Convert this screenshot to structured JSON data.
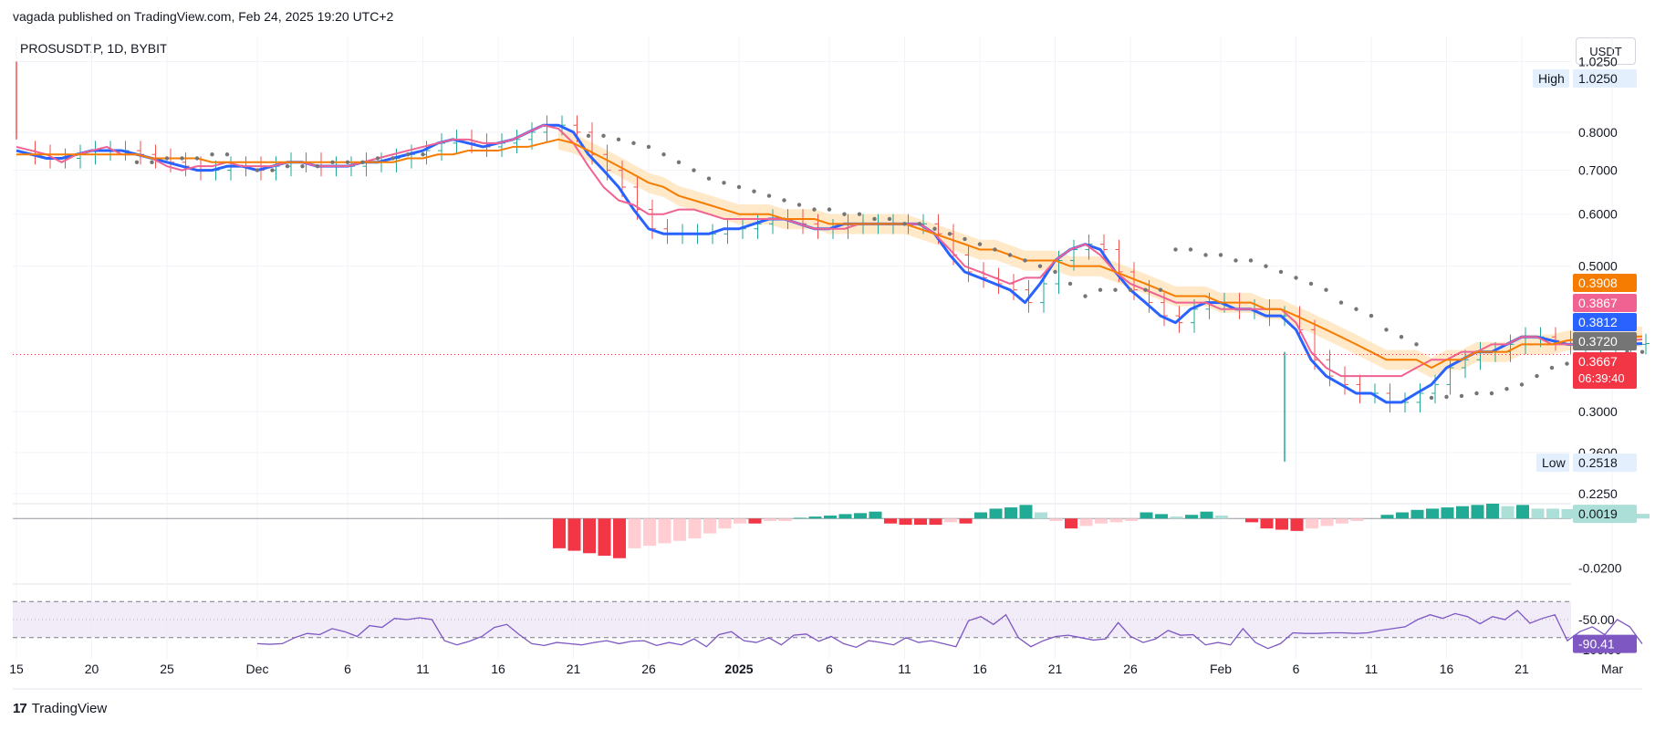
{
  "header": {
    "published_line": "vagada published on TradingView.com, Feb 24, 2025 19:20 UTC+2",
    "symbol_line": "PROSUSDT.P, 1D, BYBIT",
    "currency": "USDT"
  },
  "footer": {
    "brand": "TradingView",
    "logo_mark": "17"
  },
  "colors": {
    "blue_line": "#2962ff",
    "pink_line": "#f06292",
    "orange_line": "#f57c00",
    "band_fill": "#ffe0b2",
    "up_bar": "#26a69a",
    "down_bar": "#ef5350",
    "psar_dots": "#757575",
    "rsi_line": "#7e57c2",
    "rsi_fill": "#ede7f6",
    "grid": "#f0f3fa"
  },
  "chart_data": [
    {
      "type": "line",
      "panel": "price",
      "scale": "log",
      "ylim": [
        0.22,
        1.05
      ],
      "y_ticks": [
        "1.0250",
        "0.8000",
        "0.7000",
        "0.6000",
        "0.5000",
        "0.3000",
        "0.2600",
        "0.2250"
      ],
      "x_ticks": [
        "15",
        "20",
        "25",
        "Dec",
        "6",
        "11",
        "16",
        "21",
        "26",
        "2025",
        "6",
        "11",
        "16",
        "21",
        "26",
        "Feb",
        "6",
        "11",
        "16",
        "21",
        "Mar"
      ],
      "high_label": "High",
      "high_value": "1.0250",
      "low_label": "Low",
      "low_value": "0.2518",
      "price_labels": [
        {
          "value": "0.3908",
          "color": "#f57c00"
        },
        {
          "value": "0.3867",
          "color": "#f06292"
        },
        {
          "value": "0.3812",
          "color": "#2962ff"
        },
        {
          "value": "0.3720",
          "color": "#757575"
        }
      ],
      "last_price": "0.3667",
      "countdown": "06:39:40",
      "series": [
        {
          "color": "#2962ff",
          "values": [
            0.75,
            0.74,
            0.73,
            0.73,
            0.74,
            0.75,
            0.75,
            0.75,
            0.74,
            0.73,
            0.72,
            0.71,
            0.7,
            0.7,
            0.71,
            0.71,
            0.7,
            0.71,
            0.72,
            0.72,
            0.71,
            0.71,
            0.71,
            0.72,
            0.72,
            0.73,
            0.74,
            0.75,
            0.77,
            0.78,
            0.77,
            0.76,
            0.77,
            0.78,
            0.8,
            0.82,
            0.82,
            0.8,
            0.74,
            0.7,
            0.66,
            0.61,
            0.57,
            0.56,
            0.56,
            0.56,
            0.56,
            0.57,
            0.57,
            0.58,
            0.59,
            0.59,
            0.58,
            0.57,
            0.57,
            0.58,
            0.58,
            0.58,
            0.58,
            0.58,
            0.58,
            0.56,
            0.52,
            0.49,
            0.48,
            0.47,
            0.46,
            0.44,
            0.47,
            0.51,
            0.53,
            0.54,
            0.53,
            0.49,
            0.46,
            0.44,
            0.42,
            0.41,
            0.43,
            0.44,
            0.44,
            0.43,
            0.43,
            0.42,
            0.42,
            0.4,
            0.36,
            0.34,
            0.33,
            0.32,
            0.32,
            0.31,
            0.31,
            0.32,
            0.33,
            0.35,
            0.36,
            0.37,
            0.37,
            0.38,
            0.39,
            0.39,
            0.385,
            0.38,
            0.38,
            0.38,
            0.38,
            0.38,
            0.381
          ]
        },
        {
          "color": "#f06292",
          "values": [
            0.76,
            0.75,
            0.74,
            0.72,
            0.74,
            0.75,
            0.76,
            0.74,
            0.74,
            0.73,
            0.71,
            0.7,
            0.71,
            0.71,
            0.72,
            0.71,
            0.71,
            0.71,
            0.72,
            0.72,
            0.71,
            0.71,
            0.71,
            0.72,
            0.73,
            0.74,
            0.75,
            0.76,
            0.77,
            0.78,
            0.78,
            0.77,
            0.77,
            0.78,
            0.8,
            0.82,
            0.81,
            0.77,
            0.71,
            0.66,
            0.63,
            0.62,
            0.6,
            0.6,
            0.61,
            0.61,
            0.6,
            0.59,
            0.59,
            0.59,
            0.59,
            0.59,
            0.58,
            0.57,
            0.57,
            0.57,
            0.58,
            0.58,
            0.58,
            0.58,
            0.58,
            0.56,
            0.53,
            0.5,
            0.49,
            0.48,
            0.47,
            0.48,
            0.48,
            0.51,
            0.53,
            0.54,
            0.52,
            0.49,
            0.47,
            0.46,
            0.45,
            0.44,
            0.44,
            0.44,
            0.43,
            0.43,
            0.43,
            0.43,
            0.43,
            0.41,
            0.37,
            0.35,
            0.34,
            0.34,
            0.34,
            0.34,
            0.34,
            0.35,
            0.36,
            0.36,
            0.37,
            0.37,
            0.38,
            0.38,
            0.39,
            0.39,
            0.38,
            0.38,
            0.38,
            0.38,
            0.38,
            0.385,
            0.3867
          ]
        },
        {
          "color": "#f57c00",
          "values": [
            0.74,
            0.74,
            0.74,
            0.74,
            0.74,
            0.74,
            0.74,
            0.74,
            0.74,
            0.73,
            0.73,
            0.73,
            0.73,
            0.72,
            0.72,
            0.72,
            0.72,
            0.72,
            0.72,
            0.72,
            0.72,
            0.72,
            0.72,
            0.72,
            0.72,
            0.72,
            0.73,
            0.73,
            0.74,
            0.74,
            0.75,
            0.75,
            0.75,
            0.76,
            0.76,
            0.77,
            0.78,
            0.77,
            0.75,
            0.73,
            0.71,
            0.69,
            0.67,
            0.66,
            0.64,
            0.63,
            0.62,
            0.61,
            0.6,
            0.6,
            0.6,
            0.59,
            0.59,
            0.59,
            0.58,
            0.58,
            0.58,
            0.58,
            0.58,
            0.58,
            0.57,
            0.56,
            0.55,
            0.54,
            0.53,
            0.53,
            0.52,
            0.51,
            0.51,
            0.51,
            0.5,
            0.5,
            0.5,
            0.49,
            0.48,
            0.47,
            0.46,
            0.45,
            0.45,
            0.45,
            0.44,
            0.44,
            0.44,
            0.43,
            0.43,
            0.42,
            0.41,
            0.4,
            0.39,
            0.38,
            0.37,
            0.36,
            0.36,
            0.36,
            0.35,
            0.36,
            0.36,
            0.37,
            0.37,
            0.37,
            0.38,
            0.38,
            0.38,
            0.385,
            0.388,
            0.39,
            0.39,
            0.39,
            0.3908
          ]
        }
      ],
      "psar": [
        {
          "start": 8,
          "end": 14,
          "values": [
            0.72,
            0.72,
            0.73,
            0.73,
            0.73,
            0.74,
            0.74
          ]
        },
        {
          "start": 16,
          "end": 27,
          "values": [
            0.7,
            0.7,
            0.71,
            0.71,
            0.71,
            0.72,
            0.72,
            0.72,
            0.73,
            0.73,
            0.74,
            0.74
          ]
        },
        {
          "start": 38,
          "end": 62,
          "values": [
            0.79,
            0.79,
            0.78,
            0.77,
            0.76,
            0.74,
            0.72,
            0.7,
            0.68,
            0.67,
            0.66,
            0.65,
            0.64,
            0.63,
            0.62,
            0.61,
            0.61,
            0.6,
            0.6,
            0.59,
            0.59,
            0.58,
            0.58,
            0.57,
            0.56
          ]
        },
        {
          "start": 63,
          "end": 71,
          "values": [
            0.55,
            0.54,
            0.53,
            0.52,
            0.51,
            0.5,
            0.49,
            0.47,
            0.45
          ]
        },
        {
          "start": 72,
          "end": 76,
          "values": [
            0.46,
            0.46,
            0.46,
            0.46,
            0.46
          ]
        },
        {
          "start": 77,
          "end": 93,
          "values": [
            0.53,
            0.53,
            0.52,
            0.52,
            0.51,
            0.51,
            0.5,
            0.49,
            0.48,
            0.47,
            0.46,
            0.44,
            0.43,
            0.42,
            0.4,
            0.39,
            0.38
          ]
        },
        {
          "start": 94,
          "end": 101,
          "values": [
            0.315,
            0.316,
            0.317,
            0.32,
            0.32,
            0.325,
            0.33,
            0.34
          ]
        },
        {
          "start": 102,
          "end": 108,
          "values": [
            0.35,
            0.355,
            0.36,
            0.36,
            0.36,
            0.37,
            0.37
          ]
        }
      ]
    },
    {
      "type": "bar",
      "panel": "oscillator",
      "ylim": [
        -0.022,
        0.006
      ],
      "y_ticks": [
        "-0.0200"
      ],
      "current_value": "0.0019",
      "bars": [
        {
          "i": 36,
          "v": -0.012,
          "c": "dark_red"
        },
        {
          "i": 37,
          "v": -0.013,
          "c": "dark_red"
        },
        {
          "i": 38,
          "v": -0.014,
          "c": "dark_red"
        },
        {
          "i": 39,
          "v": -0.015,
          "c": "dark_red"
        },
        {
          "i": 40,
          "v": -0.016,
          "c": "dark_red"
        },
        {
          "i": 41,
          "v": -0.012,
          "c": "light_red"
        },
        {
          "i": 42,
          "v": -0.011,
          "c": "light_red"
        },
        {
          "i": 43,
          "v": -0.01,
          "c": "light_red"
        },
        {
          "i": 44,
          "v": -0.009,
          "c": "light_red"
        },
        {
          "i": 45,
          "v": -0.008,
          "c": "light_red"
        },
        {
          "i": 46,
          "v": -0.006,
          "c": "light_red"
        },
        {
          "i": 47,
          "v": -0.004,
          "c": "light_red"
        },
        {
          "i": 48,
          "v": -0.002,
          "c": "light_red"
        },
        {
          "i": 49,
          "v": -0.002,
          "c": "dark_red"
        },
        {
          "i": 50,
          "v": -0.001,
          "c": "light_red"
        },
        {
          "i": 51,
          "v": -0.001,
          "c": "light_red"
        },
        {
          "i": 52,
          "v": 0.0003,
          "c": "dark_green"
        },
        {
          "i": 53,
          "v": 0.0008,
          "c": "dark_green"
        },
        {
          "i": 54,
          "v": 0.0012,
          "c": "dark_green"
        },
        {
          "i": 55,
          "v": 0.0018,
          "c": "dark_green"
        },
        {
          "i": 56,
          "v": 0.0022,
          "c": "dark_green"
        },
        {
          "i": 57,
          "v": 0.0028,
          "c": "dark_green"
        },
        {
          "i": 58,
          "v": -0.002,
          "c": "dark_red"
        },
        {
          "i": 59,
          "v": -0.0025,
          "c": "dark_red"
        },
        {
          "i": 60,
          "v": -0.0025,
          "c": "dark_red"
        },
        {
          "i": 61,
          "v": -0.0025,
          "c": "dark_red"
        },
        {
          "i": 62,
          "v": -0.0015,
          "c": "light_red"
        },
        {
          "i": 63,
          "v": -0.002,
          "c": "dark_red"
        },
        {
          "i": 64,
          "v": 0.0025,
          "c": "dark_green"
        },
        {
          "i": 65,
          "v": 0.004,
          "c": "dark_green"
        },
        {
          "i": 66,
          "v": 0.0045,
          "c": "dark_green"
        },
        {
          "i": 67,
          "v": 0.0055,
          "c": "dark_green"
        },
        {
          "i": 68,
          "v": 0.0025,
          "c": "light_green"
        },
        {
          "i": 69,
          "v": -0.001,
          "c": "light_red"
        },
        {
          "i": 70,
          "v": -0.004,
          "c": "dark_red"
        },
        {
          "i": 71,
          "v": -0.003,
          "c": "light_red"
        },
        {
          "i": 72,
          "v": -0.002,
          "c": "light_red"
        },
        {
          "i": 73,
          "v": -0.0015,
          "c": "light_red"
        },
        {
          "i": 74,
          "v": -0.001,
          "c": "light_red"
        },
        {
          "i": 75,
          "v": 0.0025,
          "c": "dark_green"
        },
        {
          "i": 76,
          "v": 0.0018,
          "c": "dark_green"
        },
        {
          "i": 77,
          "v": 0.0008,
          "c": "light_green"
        },
        {
          "i": 78,
          "v": 0.0015,
          "c": "dark_green"
        },
        {
          "i": 79,
          "v": 0.0028,
          "c": "dark_green"
        },
        {
          "i": 80,
          "v": 0.0012,
          "c": "light_green"
        },
        {
          "i": 82,
          "v": -0.0015,
          "c": "dark_red"
        },
        {
          "i": 83,
          "v": -0.004,
          "c": "dark_red"
        },
        {
          "i": 84,
          "v": -0.0045,
          "c": "dark_red"
        },
        {
          "i": 85,
          "v": -0.005,
          "c": "dark_red"
        },
        {
          "i": 86,
          "v": -0.004,
          "c": "light_red"
        },
        {
          "i": 87,
          "v": -0.003,
          "c": "light_red"
        },
        {
          "i": 88,
          "v": -0.002,
          "c": "light_red"
        },
        {
          "i": 89,
          "v": -0.001,
          "c": "light_red"
        },
        {
          "i": 91,
          "v": 0.0015,
          "c": "dark_green"
        },
        {
          "i": 92,
          "v": 0.0025,
          "c": "dark_green"
        },
        {
          "i": 93,
          "v": 0.0035,
          "c": "dark_green"
        },
        {
          "i": 94,
          "v": 0.004,
          "c": "dark_green"
        },
        {
          "i": 95,
          "v": 0.0045,
          "c": "dark_green"
        },
        {
          "i": 96,
          "v": 0.005,
          "c": "dark_green"
        },
        {
          "i": 97,
          "v": 0.0055,
          "c": "dark_green"
        },
        {
          "i": 98,
          "v": 0.006,
          "c": "dark_green"
        },
        {
          "i": 99,
          "v": 0.005,
          "c": "light_green"
        },
        {
          "i": 100,
          "v": 0.0055,
          "c": "dark_green"
        },
        {
          "i": 101,
          "v": 0.004,
          "c": "light_green"
        },
        {
          "i": 102,
          "v": 0.004,
          "c": "light_green"
        },
        {
          "i": 103,
          "v": 0.0038,
          "c": "light_green"
        },
        {
          "i": 104,
          "v": 0.004,
          "c": "dark_green"
        },
        {
          "i": 105,
          "v": 0.0032,
          "c": "light_green"
        },
        {
          "i": 106,
          "v": 0.0035,
          "c": "dark_green"
        },
        {
          "i": 107,
          "v": 0.0028,
          "c": "light_green"
        },
        {
          "i": 108,
          "v": 0.0019,
          "c": "light_green"
        }
      ]
    },
    {
      "type": "line",
      "panel": "williams_r",
      "ylim": [
        -100,
        0
      ],
      "y_ticks": [
        "-50.00",
        "-100.00"
      ],
      "current_value": "-90.41",
      "start_index": 16,
      "values": [
        -90,
        -91,
        -90,
        -80,
        -73,
        -75,
        -65,
        -70,
        -78,
        -60,
        -63,
        -48,
        -50,
        -47,
        -50,
        -85,
        -92,
        -86,
        -78,
        -63,
        -58,
        -75,
        -90,
        -93,
        -88,
        -90,
        -92,
        -88,
        -85,
        -90,
        -86,
        -85,
        -93,
        -88,
        -92,
        -82,
        -95,
        -75,
        -70,
        -85,
        -88,
        -80,
        -92,
        -76,
        -74,
        -86,
        -78,
        -90,
        -96,
        -85,
        -88,
        -92,
        -80,
        -88,
        -85,
        -90,
        -95,
        -52,
        -45,
        -58,
        -42,
        -80,
        -95,
        -85,
        -78,
        -76,
        -80,
        -84,
        -82,
        -55,
        -78,
        -88,
        -82,
        -68,
        -76,
        -75,
        -92,
        -88,
        -92,
        -65,
        -88,
        -98,
        -90,
        -72,
        -73,
        -73,
        -72,
        -72,
        -73,
        -72,
        -68,
        -65,
        -62,
        -50,
        -42,
        -48,
        -40,
        -45,
        -57,
        -45,
        -50,
        -35,
        -56,
        -48,
        -42,
        -85,
        -70,
        -62,
        -75,
        -50,
        -62,
        -90.41
      ]
    }
  ]
}
